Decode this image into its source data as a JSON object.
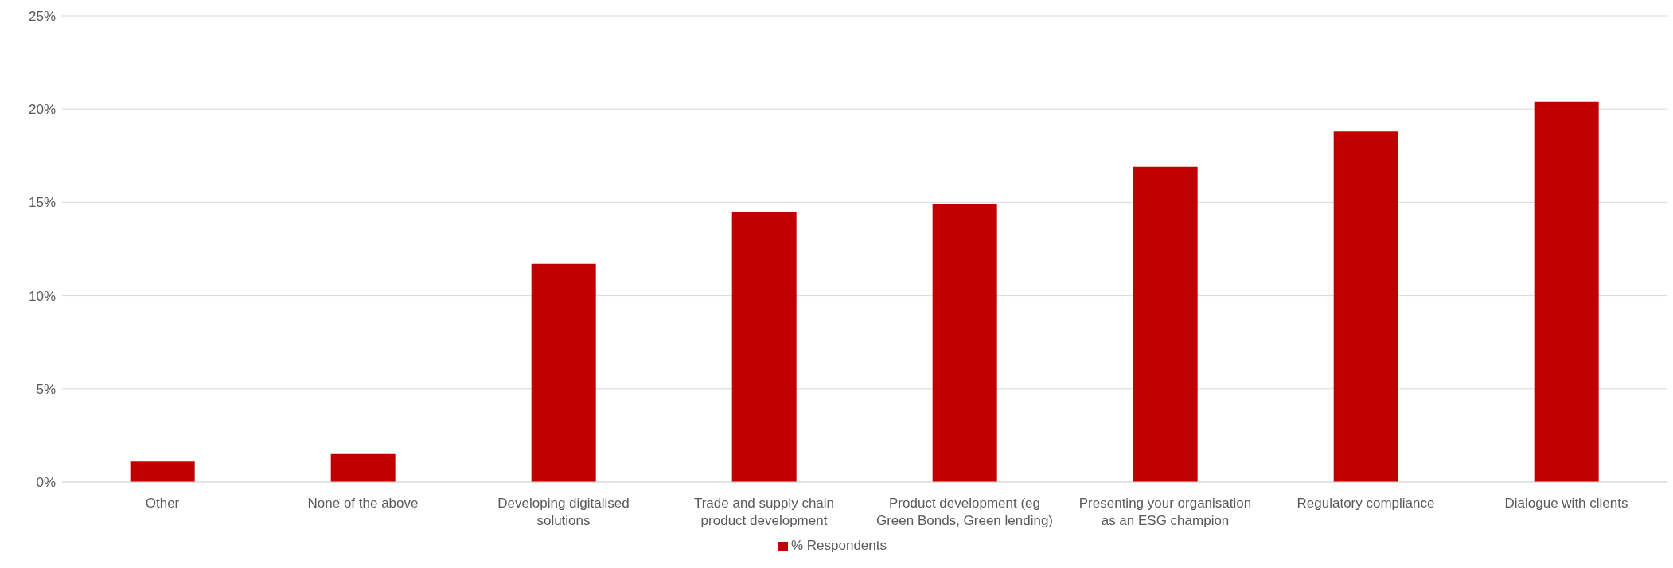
{
  "chart_data": {
    "type": "bar",
    "categories": [
      "Other",
      "None of the above",
      "Developing digitalised solutions",
      "Trade and supply chain product development",
      "Product development (eg Green Bonds, Green lending)",
      "Presenting your organisation as an ESG champion",
      "Regulatory compliance",
      "Dialogue with clients"
    ],
    "series": [
      {
        "name": "% Respondents",
        "color": "#c00000",
        "values": [
          1.1,
          1.5,
          11.7,
          14.5,
          14.9,
          16.9,
          18.8,
          20.4
        ]
      }
    ],
    "ylim": [
      0,
      25
    ],
    "yticks": [
      {
        "value": 0,
        "label": "0%"
      },
      {
        "value": 5,
        "label": "5%"
      },
      {
        "value": 10,
        "label": "10%"
      },
      {
        "value": 15,
        "label": "15%"
      },
      {
        "value": 20,
        "label": "20%"
      },
      {
        "value": 25,
        "label": "25%"
      }
    ],
    "grid": "y",
    "legend": "bottom"
  }
}
